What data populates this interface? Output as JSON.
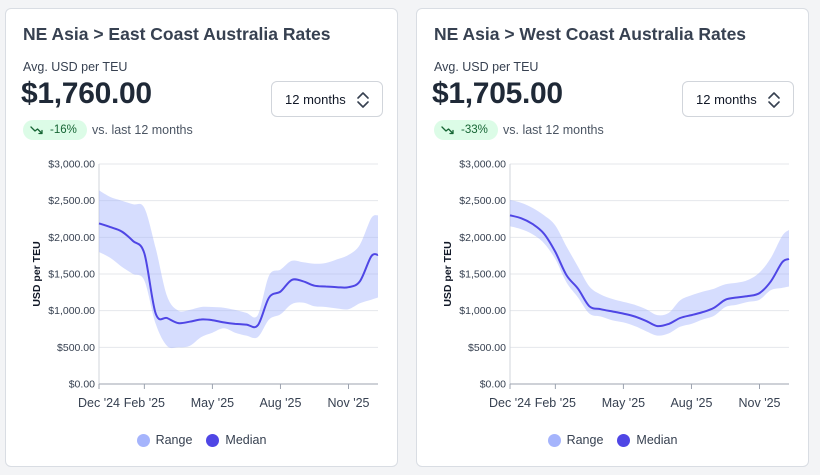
{
  "cards": [
    {
      "title": "NE Asia > East Coast Australia Rates",
      "subtitle": "Avg. USD per TEU",
      "price": "$1,760.00",
      "dropdown_value": "12 months",
      "change_badge": "-16%",
      "change_trend_icon": "trend-down-icon",
      "compare_text": "vs. last 12 months"
    },
    {
      "title": "NE Asia > West Coast Australia Rates",
      "subtitle": "Avg. USD per TEU",
      "price": "$1,705.00",
      "dropdown_value": "12 months",
      "change_badge": "-33%",
      "change_trend_icon": "trend-down-icon",
      "compare_text": "vs. last 12 months"
    }
  ],
  "chart_data": [
    {
      "type": "area",
      "ylabel": "USD per TEU",
      "y_ticks": [
        0,
        500,
        1000,
        1500,
        2000,
        2500,
        3000
      ],
      "y_tick_labels": [
        "$0.00",
        "$500.00",
        "$1,000.00",
        "$1,500.00",
        "$2,000.00",
        "$2,500.00",
        "$3,000.00"
      ],
      "ylim": [
        0,
        3000
      ],
      "x_tick_labels": [
        "Dec '24",
        "Feb '25",
        "May '25",
        "Aug '25",
        "Nov '25"
      ],
      "x_tick_positions": [
        0,
        2,
        5,
        8,
        11
      ],
      "xlim": [
        0,
        12.3
      ],
      "x": [
        0,
        0.5,
        1,
        1.5,
        2,
        2.5,
        3,
        3.5,
        4,
        4.5,
        5,
        5.5,
        6,
        6.5,
        7,
        7.5,
        8,
        8.5,
        9,
        9.5,
        10,
        10.5,
        11,
        11.5,
        12,
        12.3
      ],
      "legend": [
        "Range",
        "Median"
      ],
      "colors": {
        "range": "#a5b4fc",
        "median": "#4f46e5"
      },
      "grid": true,
      "series": [
        {
          "name": "Median",
          "values": [
            2190,
            2140,
            2080,
            1950,
            1780,
            960,
            900,
            830,
            850,
            880,
            870,
            840,
            820,
            810,
            800,
            1180,
            1260,
            1420,
            1400,
            1340,
            1330,
            1320,
            1320,
            1400,
            1740,
            1760
          ]
        },
        {
          "name": "Range",
          "low": [
            1800,
            1720,
            1600,
            1500,
            1410,
            820,
            520,
            500,
            520,
            640,
            700,
            760,
            700,
            660,
            640,
            880,
            950,
            1090,
            1110,
            1060,
            1050,
            1030,
            1020,
            1100,
            1150,
            1180
          ],
          "high": [
            2640,
            2550,
            2500,
            2450,
            2400,
            1850,
            1200,
            1000,
            1010,
            1050,
            1050,
            1040,
            1010,
            970,
            940,
            1480,
            1560,
            1680,
            1660,
            1640,
            1650,
            1700,
            1760,
            1900,
            2260,
            2300
          ]
        }
      ]
    },
    {
      "type": "area",
      "ylabel": "USD per TEU",
      "y_ticks": [
        0,
        500,
        1000,
        1500,
        2000,
        2500,
        3000
      ],
      "y_tick_labels": [
        "$0.00",
        "$500.00",
        "$1,000.00",
        "$1,500.00",
        "$2,000.00",
        "$2,500.00",
        "$3,000.00"
      ],
      "ylim": [
        0,
        3000
      ],
      "x_tick_labels": [
        "Dec '24",
        "Feb '25",
        "May '25",
        "Aug '25",
        "Nov '25"
      ],
      "x_tick_positions": [
        0,
        2,
        5,
        8,
        11
      ],
      "xlim": [
        0,
        12.3
      ],
      "x": [
        0,
        0.5,
        1,
        1.5,
        2,
        2.5,
        3,
        3.5,
        4,
        4.5,
        5,
        5.5,
        6,
        6.5,
        7,
        7.5,
        8,
        8.5,
        9,
        9.5,
        10,
        10.5,
        11,
        11.5,
        12,
        12.3
      ],
      "legend": [
        "Range",
        "Median"
      ],
      "colors": {
        "range": "#a5b4fc",
        "median": "#4f46e5"
      },
      "grid": true,
      "series": [
        {
          "name": "Median",
          "values": [
            2300,
            2260,
            2180,
            2050,
            1800,
            1480,
            1300,
            1060,
            1020,
            990,
            960,
            920,
            860,
            790,
            820,
            900,
            940,
            980,
            1040,
            1150,
            1180,
            1200,
            1240,
            1400,
            1660,
            1705
          ]
        },
        {
          "name": "Range",
          "low": [
            2150,
            2110,
            2040,
            1920,
            1700,
            1380,
            1180,
            960,
            920,
            870,
            840,
            790,
            720,
            660,
            690,
            780,
            820,
            880,
            930,
            1050,
            1080,
            1120,
            1150,
            1280,
            1310,
            1330
          ],
          "high": [
            2510,
            2470,
            2400,
            2300,
            2160,
            1870,
            1600,
            1330,
            1220,
            1160,
            1120,
            1080,
            1020,
            940,
            970,
            1140,
            1210,
            1260,
            1300,
            1360,
            1380,
            1420,
            1520,
            1720,
            2020,
            2100
          ]
        }
      ]
    }
  ]
}
